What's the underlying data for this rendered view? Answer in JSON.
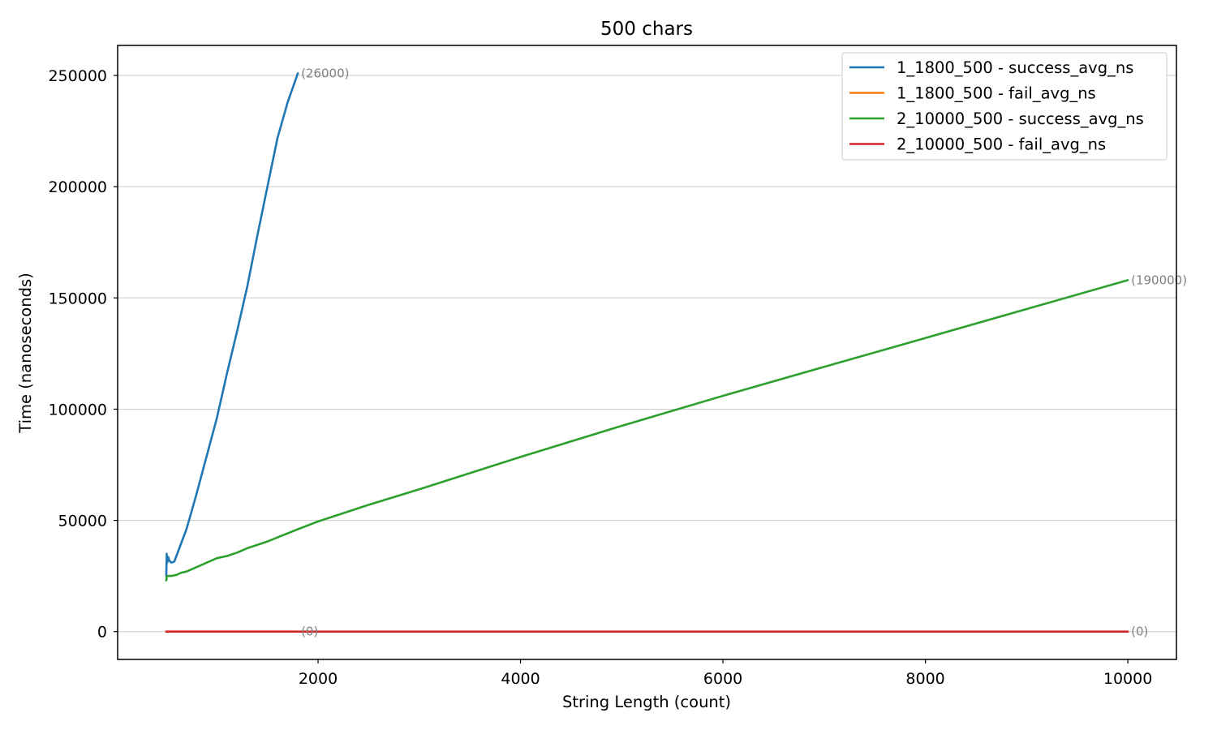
{
  "chart_data": {
    "type": "line",
    "title": "500 chars",
    "xlabel": "String Length (count)",
    "ylabel": "Time (nanoseconds)",
    "xlim": [
      20,
      10480
    ],
    "ylim": [
      -12500,
      263500
    ],
    "xticks": [
      2000,
      4000,
      6000,
      8000,
      10000
    ],
    "yticks": [
      0,
      50000,
      100000,
      150000,
      200000,
      250000
    ],
    "grid": "horizontal",
    "legend_position": "top-right",
    "series": [
      {
        "name": "1_1800_500 - success_avg_ns",
        "color": "#1f77b4",
        "x": [
          500,
          505,
          510,
          520,
          530,
          550,
          580,
          600,
          650,
          700,
          750,
          800,
          900,
          1000,
          1100,
          1200,
          1300,
          1400,
          1500,
          1600,
          1700,
          1800
        ],
        "y": [
          25000,
          35000,
          31000,
          33500,
          32000,
          31000,
          31500,
          34000,
          40000,
          46000,
          54000,
          62000,
          79000,
          96000,
          116000,
          135000,
          155000,
          178000,
          200000,
          222000,
          238000,
          251000
        ]
      },
      {
        "name": "1_1800_500 - fail_avg_ns",
        "color": "#ff7f0e",
        "x": [
          500,
          1800
        ],
        "y": [
          0,
          0
        ]
      },
      {
        "name": "2_10000_500 - success_avg_ns",
        "color": "#2ca02c",
        "x": [
          500,
          505,
          510,
          550,
          600,
          650,
          700,
          800,
          900,
          1000,
          1100,
          1200,
          1300,
          1500,
          1800,
          2000,
          2500,
          3000,
          4000,
          5000,
          6000,
          7000,
          8000,
          9000,
          10000
        ],
        "y": [
          23000,
          24500,
          25000,
          25000,
          25500,
          26500,
          27000,
          29000,
          31000,
          33000,
          34000,
          35500,
          37500,
          40500,
          46000,
          49500,
          57000,
          64000,
          78500,
          92500,
          106000,
          119000,
          132000,
          145000,
          158000
        ]
      },
      {
        "name": "2_10000_500 - fail_avg_ns",
        "color": "#d62728",
        "x": [
          500,
          10000
        ],
        "y": [
          0,
          0
        ]
      }
    ],
    "annotations": [
      {
        "text": "(26000)",
        "x": 1800,
        "y": 251000
      },
      {
        "text": "(190000)",
        "x": 10000,
        "y": 158000
      },
      {
        "text": "(0)",
        "x": 1800,
        "y": 0
      },
      {
        "text": "(0)",
        "x": 10000,
        "y": 0
      }
    ]
  }
}
